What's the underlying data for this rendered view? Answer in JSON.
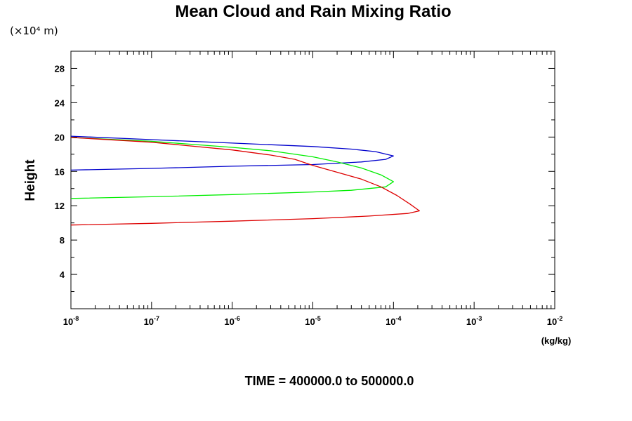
{
  "chart_data": {
    "type": "line",
    "title": "Mean Cloud and Rain Mixing Ratio",
    "scale_note": "(×10⁴ m)",
    "ylabel": "Height",
    "xunit": "(kg/kg)",
    "footer": "TIME = 400000.0 to 500000.0",
    "xscale": "log",
    "xlim": [
      1e-08,
      0.01
    ],
    "ylim": [
      0,
      30
    ],
    "y_ticks": [
      4,
      8,
      12,
      16,
      20,
      24,
      28
    ],
    "x_ticks": [
      {
        "value": 1e-08,
        "base": "10",
        "exp": "-8"
      },
      {
        "value": 1e-07,
        "base": "10",
        "exp": "-7"
      },
      {
        "value": 1e-06,
        "base": "10",
        "exp": "-6"
      },
      {
        "value": 1e-05,
        "base": "10",
        "exp": "-5"
      },
      {
        "value": 0.0001,
        "base": "10",
        "exp": "-4"
      },
      {
        "value": 0.001,
        "base": "10",
        "exp": "-3"
      },
      {
        "value": 0.01,
        "base": "10",
        "exp": "-2"
      }
    ],
    "grid": false,
    "series": [
      {
        "color": "#0000cc",
        "points": [
          [
            1e-08,
            20.1
          ],
          [
            1e-07,
            19.7
          ],
          [
            1e-06,
            19.3
          ],
          [
            1e-05,
            18.9
          ],
          [
            3e-05,
            18.6
          ],
          [
            6e-05,
            18.3
          ],
          [
            0.0001,
            17.8
          ],
          [
            8e-05,
            17.4
          ],
          [
            4e-05,
            17.1
          ],
          [
            1e-05,
            16.8
          ],
          [
            1e-06,
            16.6
          ],
          [
            1e-07,
            16.35
          ],
          [
            1e-08,
            16.15
          ]
        ]
      },
      {
        "color": "#00ee00",
        "points": [
          [
            1e-08,
            19.95
          ],
          [
            1e-07,
            19.5
          ],
          [
            1e-06,
            18.8
          ],
          [
            3e-06,
            18.4
          ],
          [
            1e-05,
            17.7
          ],
          [
            2e-05,
            17.1
          ],
          [
            4e-05,
            16.4
          ],
          [
            7e-05,
            15.6
          ],
          [
            0.0001,
            14.8
          ],
          [
            8e-05,
            14.2
          ],
          [
            3e-05,
            13.8
          ],
          [
            1e-05,
            13.6
          ],
          [
            1e-06,
            13.3
          ],
          [
            1e-07,
            13.05
          ],
          [
            1e-08,
            12.85
          ]
        ]
      },
      {
        "color": "#dd0000",
        "points": [
          [
            1e-08,
            19.95
          ],
          [
            1e-07,
            19.4
          ],
          [
            1e-06,
            18.5
          ],
          [
            3e-06,
            17.9
          ],
          [
            6e-06,
            17.4
          ],
          [
            1e-05,
            16.7
          ],
          [
            2e-05,
            15.9
          ],
          [
            4e-05,
            15.1
          ],
          [
            7e-05,
            14.2
          ],
          [
            0.00011,
            13.2
          ],
          [
            0.00016,
            12.2
          ],
          [
            0.00021,
            11.4
          ],
          [
            0.00015,
            11.1
          ],
          [
            5e-05,
            10.8
          ],
          [
            1e-05,
            10.5
          ],
          [
            1e-06,
            10.2
          ],
          [
            1e-07,
            9.95
          ],
          [
            1e-08,
            9.75
          ]
        ]
      }
    ]
  }
}
